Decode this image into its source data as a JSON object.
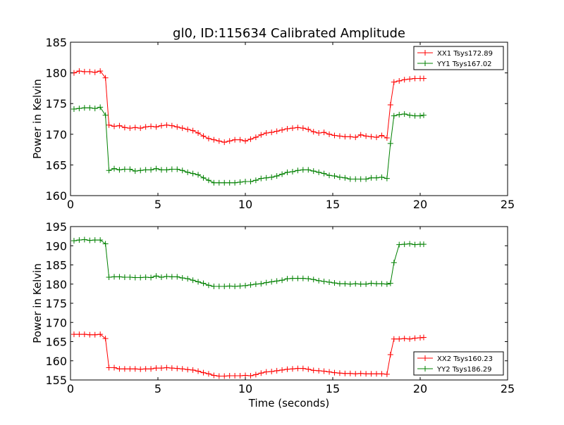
{
  "chart_data": [
    {
      "type": "line",
      "title": "gl0, ID:115634 Calibrated Amplitude",
      "xlabel": "",
      "ylabel": "Power in Kelvin",
      "xlim": [
        0,
        25
      ],
      "ylim": [
        160,
        185
      ],
      "xticks": [
        0,
        5,
        10,
        15,
        20,
        25
      ],
      "yticks": [
        160,
        165,
        170,
        175,
        180,
        185
      ],
      "grid": false,
      "legend": "top-right",
      "series": [
        {
          "name": "XX1 Tsys172.89",
          "color": "#ff0000",
          "marker": "+",
          "x": [
            0.2,
            0.5,
            0.8,
            1.1,
            1.4,
            1.7,
            2.0,
            2.2,
            2.5,
            2.8,
            3.1,
            3.4,
            3.7,
            4.0,
            4.3,
            4.6,
            4.9,
            5.2,
            5.5,
            5.8,
            6.1,
            6.4,
            6.7,
            7.0,
            7.3,
            7.6,
            7.9,
            8.2,
            8.5,
            8.8,
            9.1,
            9.4,
            9.7,
            10.0,
            10.3,
            10.6,
            10.9,
            11.2,
            11.5,
            11.8,
            12.1,
            12.4,
            12.7,
            13.0,
            13.3,
            13.6,
            13.9,
            14.2,
            14.5,
            14.8,
            15.1,
            15.4,
            15.7,
            16.0,
            16.3,
            16.6,
            16.9,
            17.2,
            17.5,
            17.8,
            18.1,
            18.3,
            18.5,
            18.8,
            19.1,
            19.4,
            19.7,
            20.0,
            20.2
          ],
          "y": [
            180.0,
            180.3,
            180.2,
            180.2,
            180.1,
            180.3,
            179.2,
            171.5,
            171.3,
            171.4,
            171.1,
            171.0,
            171.1,
            171.0,
            171.2,
            171.3,
            171.2,
            171.4,
            171.5,
            171.4,
            171.2,
            171.0,
            170.8,
            170.6,
            170.2,
            169.7,
            169.3,
            169.1,
            168.9,
            168.7,
            168.9,
            169.1,
            169.1,
            168.9,
            169.2,
            169.5,
            169.9,
            170.2,
            170.3,
            170.5,
            170.7,
            170.9,
            171.0,
            171.1,
            171.0,
            170.8,
            170.4,
            170.2,
            170.3,
            170.0,
            169.8,
            169.7,
            169.6,
            169.6,
            169.5,
            169.9,
            169.7,
            169.6,
            169.5,
            169.8,
            169.4,
            174.8,
            178.5,
            178.7,
            178.9,
            179.0,
            179.1,
            179.1,
            179.1
          ]
        },
        {
          "name": "YY1 Tsys167.02",
          "color": "#008000",
          "marker": "+",
          "x": [
            0.2,
            0.5,
            0.8,
            1.1,
            1.4,
            1.7,
            2.0,
            2.2,
            2.5,
            2.8,
            3.1,
            3.4,
            3.7,
            4.0,
            4.3,
            4.6,
            4.9,
            5.2,
            5.5,
            5.8,
            6.1,
            6.4,
            6.7,
            7.0,
            7.3,
            7.6,
            7.9,
            8.2,
            8.5,
            8.8,
            9.1,
            9.4,
            9.7,
            10.0,
            10.3,
            10.6,
            10.9,
            11.2,
            11.5,
            11.8,
            12.1,
            12.4,
            12.7,
            13.0,
            13.3,
            13.6,
            13.9,
            14.2,
            14.5,
            14.8,
            15.1,
            15.4,
            15.7,
            16.0,
            16.3,
            16.6,
            16.9,
            17.2,
            17.5,
            17.8,
            18.1,
            18.3,
            18.5,
            18.8,
            19.1,
            19.4,
            19.7,
            20.0,
            20.2
          ],
          "y": [
            174.1,
            174.2,
            174.3,
            174.3,
            174.2,
            174.4,
            173.1,
            164.1,
            164.4,
            164.2,
            164.3,
            164.3,
            164.0,
            164.1,
            164.2,
            164.2,
            164.4,
            164.2,
            164.2,
            164.3,
            164.3,
            164.1,
            163.8,
            163.6,
            163.4,
            162.9,
            162.5,
            162.1,
            162.1,
            162.1,
            162.1,
            162.1,
            162.2,
            162.3,
            162.3,
            162.5,
            162.8,
            162.9,
            163.0,
            163.2,
            163.5,
            163.8,
            163.9,
            164.1,
            164.2,
            164.2,
            164.0,
            163.8,
            163.6,
            163.3,
            163.2,
            163.0,
            162.9,
            162.7,
            162.7,
            162.7,
            162.7,
            162.9,
            162.9,
            163.0,
            162.8,
            168.5,
            173.0,
            173.2,
            173.3,
            173.1,
            173.0,
            173.0,
            173.1
          ]
        }
      ]
    },
    {
      "type": "line",
      "title": "",
      "xlabel": "Time (seconds)",
      "ylabel": "Power in Kelvin",
      "xlim": [
        0,
        25
      ],
      "ylim": [
        155,
        195
      ],
      "xticks": [
        0,
        5,
        10,
        15,
        20,
        25
      ],
      "yticks": [
        155,
        160,
        165,
        170,
        175,
        180,
        185,
        190,
        195
      ],
      "grid": false,
      "legend": "bottom-right",
      "series": [
        {
          "name": "XX2 Tsys160.23",
          "color": "#ff0000",
          "marker": "+",
          "x": [
            0.2,
            0.5,
            0.8,
            1.1,
            1.4,
            1.7,
            2.0,
            2.2,
            2.5,
            2.8,
            3.1,
            3.4,
            3.7,
            4.0,
            4.3,
            4.6,
            4.9,
            5.2,
            5.5,
            5.8,
            6.1,
            6.4,
            6.7,
            7.0,
            7.3,
            7.6,
            7.9,
            8.2,
            8.5,
            8.8,
            9.1,
            9.4,
            9.7,
            10.0,
            10.3,
            10.6,
            10.9,
            11.2,
            11.5,
            11.8,
            12.1,
            12.4,
            12.7,
            13.0,
            13.3,
            13.6,
            13.9,
            14.2,
            14.5,
            14.8,
            15.1,
            15.4,
            15.7,
            16.0,
            16.3,
            16.6,
            16.9,
            17.2,
            17.5,
            17.8,
            18.1,
            18.3,
            18.5,
            18.8,
            19.1,
            19.4,
            19.7,
            20.0,
            20.2
          ],
          "y": [
            166.9,
            166.9,
            166.9,
            166.8,
            166.8,
            166.9,
            165.8,
            158.2,
            158.2,
            157.9,
            157.9,
            157.9,
            157.9,
            157.8,
            157.9,
            157.9,
            158.1,
            158.1,
            158.2,
            158.1,
            158.0,
            157.9,
            157.7,
            157.6,
            157.3,
            156.9,
            156.6,
            156.2,
            156.0,
            156.0,
            156.1,
            156.1,
            156.1,
            156.2,
            156.1,
            156.4,
            156.8,
            157.1,
            157.2,
            157.4,
            157.6,
            157.8,
            157.9,
            158.0,
            158.0,
            157.8,
            157.5,
            157.4,
            157.3,
            157.1,
            156.9,
            156.8,
            156.7,
            156.7,
            156.6,
            156.7,
            156.6,
            156.6,
            156.6,
            156.6,
            156.5,
            161.6,
            165.7,
            165.7,
            165.8,
            165.7,
            165.9,
            166.0,
            166.1
          ]
        },
        {
          "name": "YY2 Tsys186.29",
          "color": "#008000",
          "marker": "+",
          "x": [
            0.2,
            0.5,
            0.8,
            1.1,
            1.4,
            1.7,
            2.0,
            2.2,
            2.5,
            2.8,
            3.1,
            3.4,
            3.7,
            4.0,
            4.3,
            4.6,
            4.9,
            5.2,
            5.5,
            5.8,
            6.1,
            6.4,
            6.7,
            7.0,
            7.3,
            7.6,
            7.9,
            8.2,
            8.5,
            8.8,
            9.1,
            9.4,
            9.7,
            10.0,
            10.3,
            10.6,
            10.9,
            11.2,
            11.5,
            11.8,
            12.1,
            12.4,
            12.7,
            13.0,
            13.3,
            13.6,
            13.9,
            14.2,
            14.5,
            14.8,
            15.1,
            15.4,
            15.7,
            16.0,
            16.3,
            16.6,
            16.9,
            17.2,
            17.5,
            17.8,
            18.1,
            18.3,
            18.5,
            18.8,
            19.1,
            19.4,
            19.7,
            20.0,
            20.2
          ],
          "y": [
            191.3,
            191.5,
            191.6,
            191.4,
            191.5,
            191.5,
            190.5,
            181.8,
            181.9,
            181.9,
            181.8,
            181.8,
            181.7,
            181.7,
            181.8,
            181.7,
            182.1,
            181.8,
            182.0,
            181.9,
            181.9,
            181.6,
            181.4,
            181.0,
            180.6,
            180.2,
            179.7,
            179.4,
            179.4,
            179.4,
            179.5,
            179.4,
            179.5,
            179.6,
            179.8,
            180.0,
            180.1,
            180.4,
            180.6,
            180.8,
            181.0,
            181.4,
            181.5,
            181.5,
            181.5,
            181.4,
            181.2,
            180.9,
            180.7,
            180.5,
            180.3,
            180.1,
            180.1,
            180.0,
            180.1,
            180.0,
            180.0,
            180.2,
            180.1,
            180.1,
            180.0,
            180.2,
            185.6,
            190.3,
            190.4,
            190.5,
            190.3,
            190.4,
            190.4
          ]
        }
      ]
    }
  ]
}
